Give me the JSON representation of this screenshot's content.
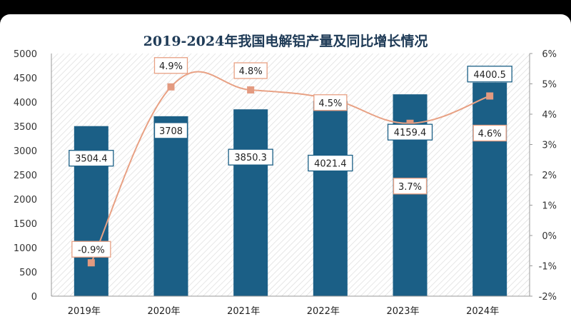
{
  "chart_data": {
    "type": "bar",
    "title": "2019-2024年我国电解铝产量及同比增长情况",
    "categories": [
      "2019年",
      "2020年",
      "2021年",
      "2022年",
      "2023年",
      "2024年"
    ],
    "series": [
      {
        "type": "bar",
        "axis": "left",
        "values": [
          3504.4,
          3708,
          3850.3,
          4021.4,
          4159.4,
          4400.5
        ],
        "labels": [
          "3504.4",
          "3708",
          "3850.3",
          "4021.4",
          "4159.4",
          "4400.5"
        ]
      },
      {
        "type": "line",
        "axis": "right",
        "values": [
          -0.9,
          4.9,
          4.8,
          4.5,
          3.7,
          4.6
        ],
        "labels": [
          "-0.9%",
          "4.9%",
          "4.8%",
          "4.5%",
          "3.7%",
          "4.6%"
        ]
      }
    ],
    "yleft": {
      "min": 0,
      "max": 5000,
      "step": 500,
      "ticks": [
        "0",
        "500",
        "1000",
        "1500",
        "2000",
        "2500",
        "3000",
        "3500",
        "4000",
        "4500",
        "5000"
      ]
    },
    "yright": {
      "min": -2,
      "max": 6,
      "step": 1,
      "ticks": [
        "-2%",
        "-1%",
        "0%",
        "1%",
        "2%",
        "3%",
        "4%",
        "5%",
        "6%"
      ]
    },
    "legend": "none",
    "colors": {
      "bar": "#1b5f86",
      "line": "#e8a184",
      "marker": "#e39a80",
      "title": "#1f3b57"
    }
  }
}
